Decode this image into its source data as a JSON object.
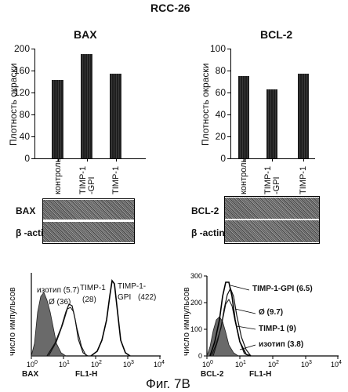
{
  "page": {
    "title": "RCC-26",
    "caption": "Фиг. 7В"
  },
  "chart_data": [
    {
      "type": "bar",
      "title": "BAX",
      "ylabel": "Плотность окраски",
      "categories": [
        "контроль",
        "TIMP-1-GPI",
        "TIMP-1"
      ],
      "category_labels": [
        "контроль",
        "TIMP-1\n-GPI",
        "TIMP-1"
      ],
      "values": [
        143,
        190,
        155
      ],
      "ylim": [
        0,
        200
      ],
      "yticks": [
        "0",
        "40",
        "80",
        "120",
        "160",
        "200"
      ]
    },
    {
      "type": "bar",
      "title": "BCL-2",
      "ylabel": "Плотность окраски",
      "categories": [
        "контроль",
        "TIMP-1-GPI",
        "TIMP-1"
      ],
      "category_labels": [
        "контроль",
        "TIMP-1\n-GPI",
        "TIMP-1"
      ],
      "values": [
        75,
        63,
        77
      ],
      "ylim": [
        0,
        100
      ],
      "yticks": [
        "0",
        "20",
        "40",
        "60",
        "80",
        "100"
      ]
    }
  ],
  "blots": {
    "left": {
      "row1": "BAX",
      "row2": "β -actin"
    },
    "right": {
      "row1": "BCL-2",
      "row2": "β -actin"
    }
  },
  "histograms": {
    "ylabel": "число импульсов",
    "left": {
      "xlabel": "BAX",
      "axis_name": "FL1-H",
      "labels": [
        "изотип (5.7)",
        "Ø (36)",
        "TIMP-1",
        "(28)",
        "TIMP-1-",
        "GPI",
        "(422)"
      ],
      "yticks": []
    },
    "right": {
      "xlabel": "BCL-2",
      "axis_name": "FL1-H",
      "labels": [
        "TIMP-1-GPI  (6.5)",
        "Ø  (9.7)",
        "TIMP-1  (9)",
        "изотип (3.8)"
      ],
      "yticks": [
        "0",
        "100",
        "200",
        "300"
      ]
    }
  }
}
